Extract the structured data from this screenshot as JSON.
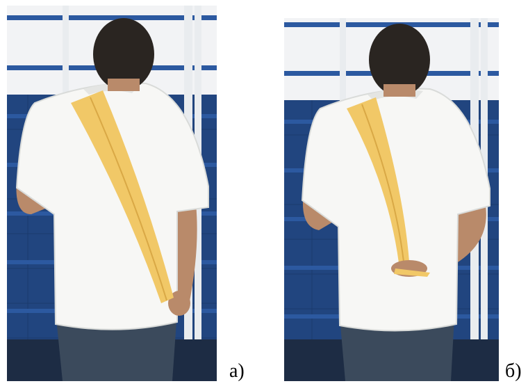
{
  "figure": {
    "panels": [
      {
        "label": "а)"
      },
      {
        "label": "б)"
      }
    ]
  },
  "colors": {
    "wall_white": "#f2f3f5",
    "wall_blue": "#21457f",
    "ladder_frame": "#e9ecef",
    "shirt": "#f7f7f5",
    "shirt_shadow": "#d9dbd9",
    "band": "#f1c867",
    "band_shadow": "#d9a845",
    "hair": "#2a2521",
    "skin": "#b98a6a",
    "trousers": "#3b4a5c"
  }
}
